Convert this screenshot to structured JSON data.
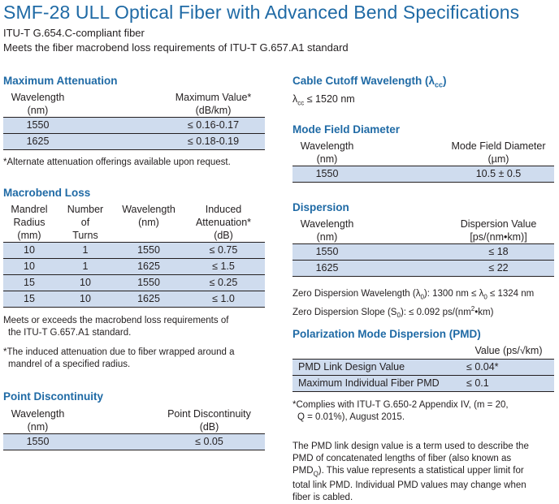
{
  "title": "SMF-28 ULL Optical Fiber with Advanced Bend Specifications",
  "subtitles": [
    "ITU-T G.654.C-compliant fiber",
    "Meets the fiber macrobend loss requirements of ITU-T G.657.A1 standard"
  ],
  "max_attenuation": {
    "heading": "Maximum Attenuation",
    "col1": [
      "Wavelength",
      "(nm)"
    ],
    "col2": [
      "Maximum Value*",
      "(dB/km)"
    ],
    "rows": [
      [
        "1550",
        "≤ 0.16-0.17"
      ],
      [
        "1625",
        "≤ 0.18-0.19"
      ]
    ],
    "note": "*Alternate attenuation offerings available upon request."
  },
  "macrobend": {
    "heading": "Macrobend Loss",
    "headers": [
      [
        "Mandrel",
        "Radius",
        "(mm)"
      ],
      [
        "Number",
        "of",
        "Turns"
      ],
      [
        "Wavelength",
        "(nm)"
      ],
      [
        "Induced",
        "Attenuation*",
        "(dB)"
      ]
    ],
    "rows": [
      [
        "10",
        "1",
        "1550",
        "≤ 0.75"
      ],
      [
        "10",
        "1",
        "1625",
        "≤ 1.5"
      ],
      [
        "15",
        "10",
        "1550",
        "≤ 0.25"
      ],
      [
        "15",
        "10",
        "1625",
        "≤ 1.0"
      ]
    ],
    "note1": [
      "Meets or exceeds the macrobend loss requirements of",
      "the ITU-T G.657.A1 standard."
    ],
    "note2": [
      "*The induced attenuation due to fiber wrapped around a",
      "mandrel of a specified radius."
    ]
  },
  "point_disc": {
    "heading": "Point Discontinuity",
    "col1": [
      "Wavelength",
      "(nm)"
    ],
    "col2": [
      "Point Discontinuity",
      "(dB)"
    ],
    "rows": [
      [
        "1550",
        "≤ 0.05"
      ]
    ]
  },
  "cutoff": {
    "heading": "Cable Cutoff Wavelength (λ",
    "heading_sub": "cc",
    "heading_end": ")",
    "value_pre": "λ",
    "value_sub": "cc",
    "value": " ≤ 1520 nm"
  },
  "mfd": {
    "heading": "Mode Field Diameter",
    "col1": [
      "Wavelength",
      "(nm)"
    ],
    "col2": [
      "Mode Field Diameter",
      "(µm)"
    ],
    "rows": [
      [
        "1550",
        "10.5 ± 0.5"
      ]
    ]
  },
  "dispersion": {
    "heading": "Dispersion",
    "col1": [
      "Wavelength",
      "(nm)"
    ],
    "col2": [
      "Dispersion Value",
      "[ps/(nm•km)]"
    ],
    "rows": [
      [
        "1550",
        "≤ 18"
      ],
      [
        "1625",
        "≤ 22"
      ]
    ],
    "zdw": [
      "Zero Dispersion Wavelength (λ",
      "0",
      "): 1300 nm ≤ λ",
      "0",
      " ≤ 1324 nm"
    ],
    "zds": [
      "Zero Dispersion Slope (S",
      "0",
      "): ≤ 0.092 ps/(nm",
      "2",
      "•km)"
    ]
  },
  "pmd": {
    "heading": "Polarization Mode Dispersion (PMD)",
    "col_header": "Value (ps/√km)",
    "rows": [
      [
        "PMD Link Design Value",
        "≤ 0.04*"
      ],
      [
        "Maximum Individual Fiber PMD",
        "≤ 0.1"
      ]
    ],
    "note": [
      "*Complies with ITU-T G.650-2 Appendix IV, (m = 20,",
      "Q = 0.01%), August 2015."
    ],
    "desc": [
      "The PMD link design value is a term used to describe the",
      "PMD of concatenated lengths of fiber (also known as",
      "PMD",
      "Q",
      "). This value represents a statistical upper limit for",
      "total link PMD. Individual PMD values may change when",
      "fiber is cabled."
    ]
  }
}
